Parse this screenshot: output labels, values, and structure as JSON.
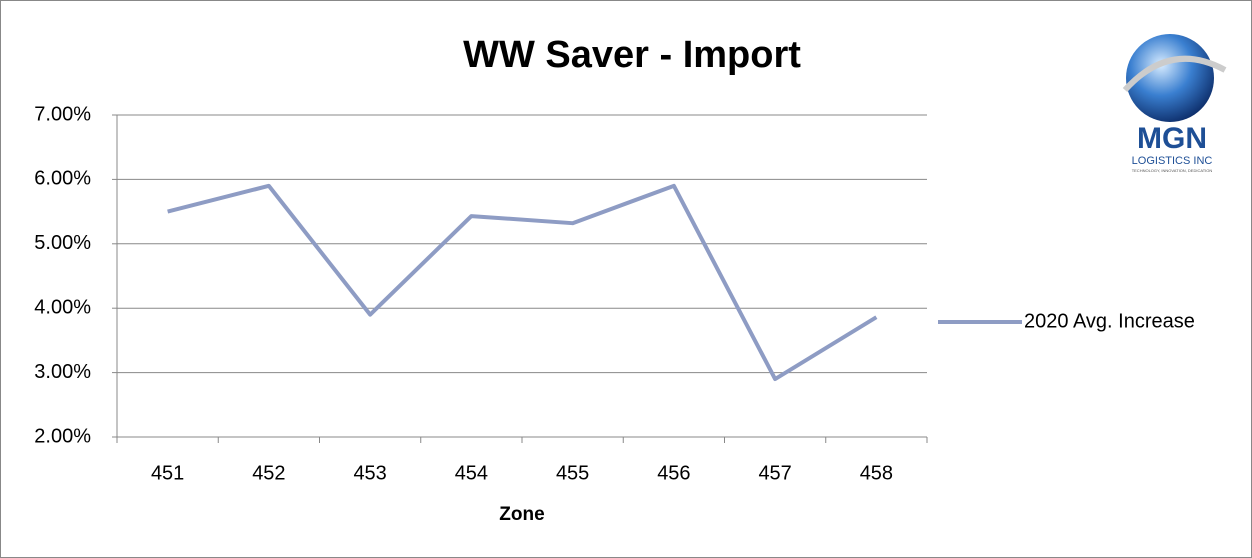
{
  "chart_data": {
    "type": "line",
    "title": "WW Saver - Import",
    "xlabel": "Zone",
    "categories": [
      "451",
      "452",
      "453",
      "454",
      "455",
      "456",
      "457",
      "458"
    ],
    "series": [
      {
        "name": "2020 Avg. Increase",
        "color": "#8e9cc4",
        "values": [
          5.5,
          5.9,
          3.9,
          5.43,
          5.32,
          5.9,
          2.9,
          3.86
        ]
      }
    ],
    "ylim": [
      2,
      7
    ],
    "yticks": [
      {
        "value": 2,
        "label": "2.00%"
      },
      {
        "value": 3,
        "label": "3.00%"
      },
      {
        "value": 4,
        "label": "4.00%"
      },
      {
        "value": 5,
        "label": "5.00%"
      },
      {
        "value": 6,
        "label": "6.00%"
      },
      {
        "value": 7,
        "label": "7.00%"
      }
    ],
    "grid": true,
    "legend": "right"
  },
  "logo": {
    "name": "MGN",
    "subtitle": "LOGISTICS INC",
    "tagline": "TECHNOLOGY, INNOVATION, DEDICATION"
  }
}
